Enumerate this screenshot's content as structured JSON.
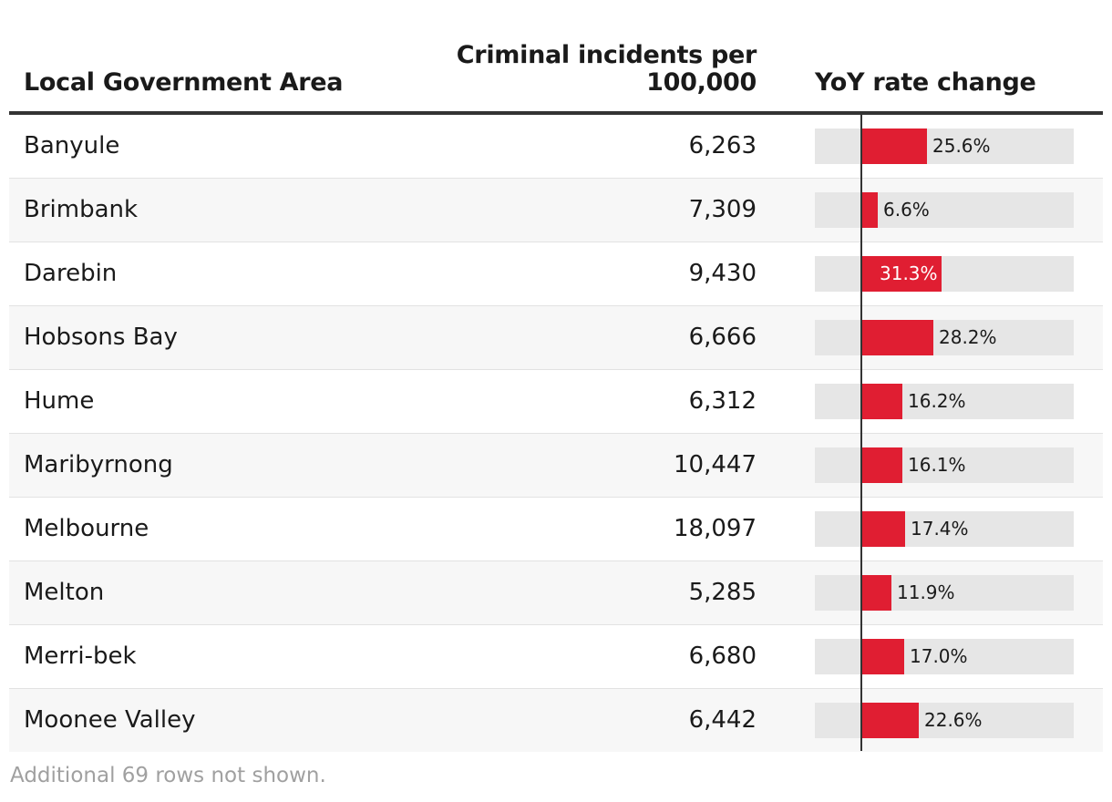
{
  "header": {
    "lga": "Local Government Area",
    "incidents_line1": "Criminal incidents per",
    "incidents_line2": "100,000",
    "yoy": "YoY rate change"
  },
  "footnote": "Additional 69 rows not shown.",
  "colors": {
    "bar": "#e01e32",
    "track": "#e6e6e6",
    "axis": "#333333"
  },
  "chart_data": {
    "type": "table",
    "columns": [
      "Local Government Area",
      "Criminal incidents per 100,000",
      "YoY rate change"
    ],
    "rows": [
      {
        "lga": "Banyule",
        "incidents": "6,263",
        "yoy": 25.6,
        "yoy_label": "25.6%"
      },
      {
        "lga": "Brimbank",
        "incidents": "7,309",
        "yoy": 6.6,
        "yoy_label": "6.6%"
      },
      {
        "lga": "Darebin",
        "incidents": "9,430",
        "yoy": 31.3,
        "yoy_label": "31.3%"
      },
      {
        "lga": "Hobsons Bay",
        "incidents": "6,666",
        "yoy": 28.2,
        "yoy_label": "28.2%"
      },
      {
        "lga": "Hume",
        "incidents": "6,312",
        "yoy": 16.2,
        "yoy_label": "16.2%"
      },
      {
        "lga": "Maribyrnong",
        "incidents": "10,447",
        "yoy": 16.1,
        "yoy_label": "16.1%"
      },
      {
        "lga": "Melbourne",
        "incidents": "18,097",
        "yoy": 17.4,
        "yoy_label": "17.4%"
      },
      {
        "lga": "Melton",
        "incidents": "5,285",
        "yoy": 11.9,
        "yoy_label": "11.9%"
      },
      {
        "lga": "Merri-bek",
        "incidents": "6,680",
        "yoy": 17.0,
        "yoy_label": "17.0%"
      },
      {
        "lga": "Moonee Valley",
        "incidents": "6,442",
        "yoy": 22.6,
        "yoy_label": "22.6%"
      }
    ],
    "yoy_max": 31.3
  }
}
